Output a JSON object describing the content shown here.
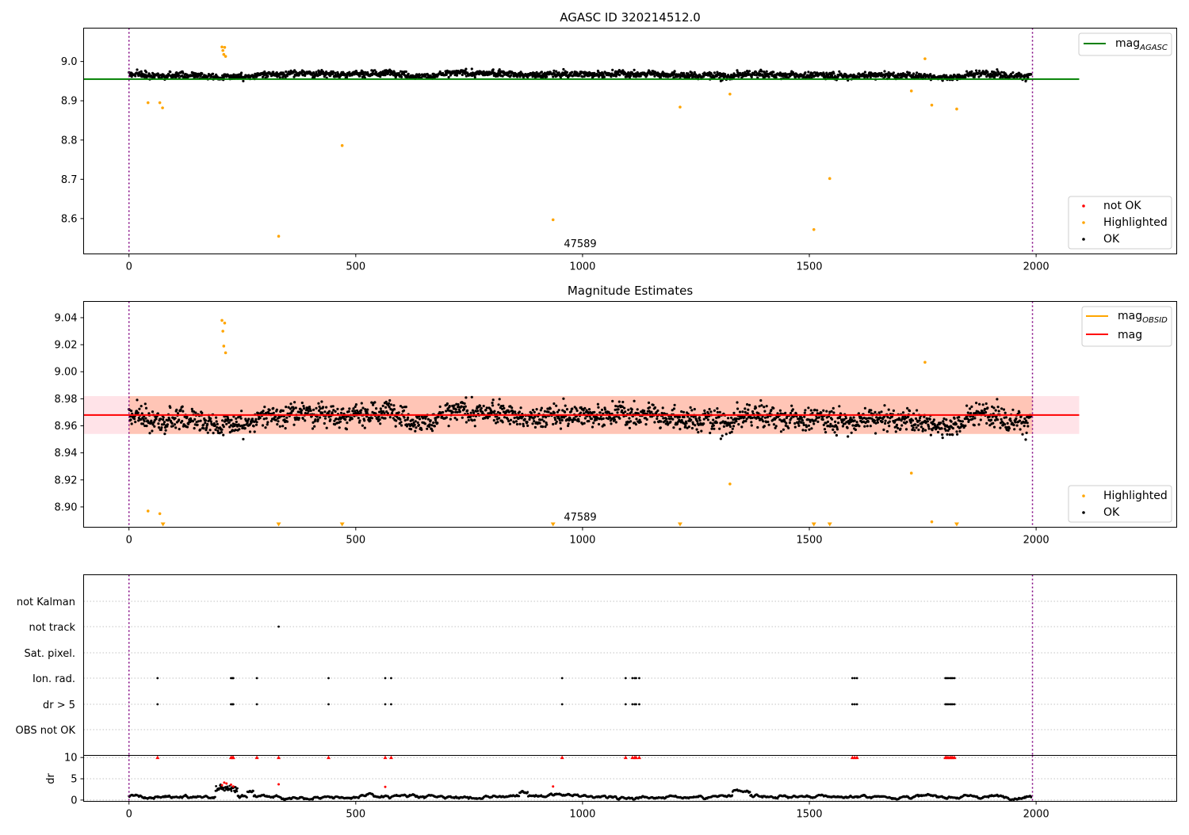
{
  "chart_data": [
    {
      "type": "scatter",
      "title": "AGASC ID 320214512.0",
      "xlim": [
        -100,
        2310
      ],
      "ylim": [
        8.51,
        9.085
      ],
      "xticks": [
        0,
        500,
        1000,
        1500,
        2000
      ],
      "yticks": [
        8.6,
        8.7,
        8.8,
        8.9,
        9.0
      ],
      "ytick_labels": [
        "8.6",
        "8.7",
        "8.8",
        "8.9",
        "9.0"
      ],
      "obsid_boundaries": [
        0,
        1992
      ],
      "obsid_label": "47589",
      "mag_agasc": 8.955,
      "mag_agasc_xrange": [
        -100,
        2095
      ],
      "ok_series": {
        "name": "OK",
        "color": "#000000",
        "n": 1990,
        "base": 8.968,
        "noise": 0.011
      },
      "highlighted": {
        "name": "Highlighted",
        "color": "#ffa500",
        "x": [
          42,
          68,
          74,
          205,
          207,
          209,
          211,
          213,
          330,
          470,
          935,
          1215,
          1325,
          1510,
          1545,
          1725,
          1755,
          1770,
          1825
        ],
        "y": [
          8.895,
          8.895,
          8.882,
          9.037,
          9.028,
          9.018,
          9.036,
          9.013,
          8.555,
          8.786,
          8.597,
          8.884,
          8.917,
          8.572,
          8.702,
          8.925,
          9.007,
          8.889,
          8.879
        ]
      },
      "legend_top": [
        {
          "label": "mag",
          "sub": "AGASC",
          "color": "#008000"
        }
      ],
      "legend_bottom": [
        {
          "label": "not OK",
          "color": "#ff0000"
        },
        {
          "label": "Highlighted",
          "color": "#ffa500"
        },
        {
          "label": "OK",
          "color": "#000000"
        }
      ]
    },
    {
      "type": "scatter",
      "title": "Magnitude Estimates",
      "xlim": [
        -100,
        2310
      ],
      "ylim": [
        8.885,
        9.052
      ],
      "xticks": [
        0,
        500,
        1000,
        1500,
        2000
      ],
      "yticks": [
        8.9,
        8.92,
        8.94,
        8.96,
        8.98,
        9.0,
        9.02,
        9.04
      ],
      "ytick_labels": [
        "8.90",
        "8.92",
        "8.94",
        "8.96",
        "8.98",
        "9.00",
        "9.02",
        "9.04"
      ],
      "obsid_boundaries": [
        0,
        1992
      ],
      "obsid_label": "47589",
      "mag_obsid": {
        "mean": 8.968,
        "band": [
          8.954,
          8.982
        ],
        "x_range": [
          0,
          1992
        ]
      },
      "mag": {
        "mean": 8.968,
        "band": [
          8.954,
          8.982
        ],
        "x_range": [
          -100,
          2095
        ]
      },
      "ok_series": {
        "name": "OK",
        "color": "#000000",
        "n": 1990,
        "base": 8.968,
        "noise": 0.011
      },
      "highlighted": {
        "name": "Highlighted",
        "color": "#ffa500",
        "x": [
          42,
          68,
          205,
          207,
          209,
          211,
          213,
          1325,
          1725,
          1755,
          1770
        ],
        "y": [
          8.897,
          8.895,
          9.038,
          9.03,
          9.019,
          9.036,
          9.014,
          8.917,
          8.925,
          9.007,
          8.889
        ]
      },
      "below_range_markers": [
        75,
        330,
        470,
        935,
        1215,
        1510,
        1545,
        1825
      ],
      "legend_top": [
        {
          "label": "mag",
          "sub": "OBSID",
          "color": "#ffa500"
        },
        {
          "label": "mag",
          "sub": "",
          "color": "#ff0000"
        }
      ],
      "legend_bottom": [
        {
          "label": "Highlighted",
          "color": "#ffa500"
        },
        {
          "label": "OK",
          "color": "#000000"
        }
      ]
    },
    {
      "type": "scatter",
      "title": "",
      "xlim": [
        -100,
        2310
      ],
      "flag_labels": [
        "not Kalman",
        "not track",
        "Sat. pixel.",
        "Ion. rad.",
        "dr > 5",
        "OBS not OK"
      ],
      "not_track_x": [
        330
      ],
      "ion_rad_x": [
        63,
        225,
        228,
        230,
        282,
        440,
        565,
        578,
        955,
        1095,
        1110,
        1115,
        1118,
        1125,
        1595,
        1600,
        1605,
        1800,
        1803,
        1806,
        1810,
        1813,
        1816,
        1820
      ],
      "dr_gt5_x": [
        63,
        225,
        228,
        230,
        282,
        440,
        565,
        578,
        955,
        1095,
        1110,
        1115,
        1118,
        1125,
        1595,
        1600,
        1605,
        1800,
        1803,
        1806,
        1810,
        1813,
        1816,
        1820
      ],
      "dr": {
        "ylabel": "dr",
        "ylim": [
          -0.3,
          10.5
        ],
        "yticks": [
          0,
          5,
          10
        ],
        "ytick_labels": [
          "0",
          "5",
          "10"
        ],
        "clipped_at_10_x": [
          63,
          225,
          228,
          230,
          282,
          330,
          440,
          565,
          578,
          955,
          1095,
          1110,
          1115,
          1118,
          1125,
          1595,
          1600,
          1605,
          1800,
          1803,
          1806,
          1810,
          1813,
          1816,
          1820
        ],
        "red_x": [
          205,
          210,
          215,
          225,
          230,
          330,
          565,
          935
        ],
        "red_y": [
          3.5,
          4.1,
          3.9,
          3.6,
          3.2,
          3.7,
          3.1,
          3.2
        ]
      }
    }
  ]
}
